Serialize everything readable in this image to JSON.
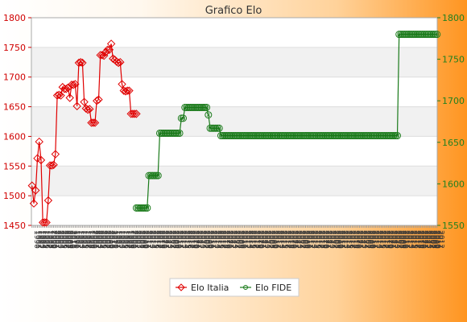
{
  "chart_data": {
    "type": "line",
    "title": "Grafico Elo",
    "xlabel": "",
    "ylabel": "",
    "left_axis": {
      "min": 1450,
      "max": 1800,
      "ticks": [
        1450,
        1500,
        1550,
        1600,
        1650,
        1700,
        1750,
        1800
      ],
      "color": "#d00000"
    },
    "right_axis": {
      "min": 1550,
      "max": 1800,
      "ticks": [
        1550,
        1600,
        1650,
        1700,
        1750,
        1800
      ],
      "color": "#208020"
    },
    "grid": true,
    "legend_position": "bottom-center",
    "series": [
      {
        "name": "Elo Italia",
        "axis": "left",
        "color": "#e00000",
        "marker": "diamond",
        "values": [
          1517,
          1487,
          1509,
          1563,
          1591,
          1560,
          1455,
          1455,
          1455,
          1492,
          1551,
          1551,
          1552,
          1570,
          1669,
          1670,
          1669,
          1683,
          1680,
          1680,
          1682,
          1665,
          1687,
          1687,
          1688,
          1651,
          1724,
          1725,
          1724,
          1658,
          1647,
          1645,
          1646,
          1623,
          1623,
          1623,
          1660,
          1662,
          1737,
          1737,
          1736,
          1742,
          1746,
          1746,
          1756,
          1731,
          1729,
          1726,
          1724,
          1725,
          1688,
          1677,
          1676,
          1677,
          1677,
          1638,
          1638,
          1638,
          1638
        ]
      },
      {
        "name": "Elo FIDE",
        "axis": "right",
        "color": "#1a7a1a",
        "marker": "circle",
        "offset": 58,
        "values": [
          1571,
          1571,
          1571,
          1571,
          1571,
          1571,
          1571,
          1610,
          1610,
          1610,
          1610,
          1610,
          1610,
          1661,
          1661,
          1661,
          1661,
          1661,
          1661,
          1661,
          1661,
          1661,
          1661,
          1661,
          1661,
          1679,
          1679,
          1692,
          1692,
          1692,
          1692,
          1692,
          1692,
          1692,
          1692,
          1692,
          1692,
          1692,
          1692,
          1692,
          1683,
          1667,
          1667,
          1667,
          1667,
          1667,
          1667,
          1658,
          1658,
          1658,
          1658,
          1658,
          1658,
          1658,
          1658,
          1658,
          1658,
          1658,
          1658,
          1658,
          1658,
          1658,
          1658,
          1658,
          1658,
          1658,
          1658,
          1658,
          1658,
          1658,
          1658,
          1658,
          1658,
          1658,
          1658,
          1658,
          1658,
          1658,
          1658,
          1658,
          1658,
          1658,
          1658,
          1658,
          1658,
          1658,
          1658,
          1658,
          1658,
          1658,
          1658,
          1658,
          1658,
          1658,
          1658,
          1658,
          1658,
          1658,
          1658,
          1658,
          1658,
          1658,
          1658,
          1658,
          1658,
          1658,
          1658,
          1658,
          1658,
          1658,
          1658,
          1658,
          1658,
          1658,
          1658,
          1658,
          1658,
          1658,
          1658,
          1658,
          1658,
          1658,
          1658,
          1658,
          1658,
          1658,
          1658,
          1658,
          1658,
          1658,
          1658,
          1658,
          1658,
          1658,
          1658,
          1658,
          1658,
          1658,
          1658,
          1658,
          1658,
          1658,
          1658,
          1658,
          1658,
          1658,
          1780,
          1780,
          1780,
          1780,
          1780,
          1780,
          1780,
          1780,
          1780,
          1780,
          1780,
          1780,
          1780,
          1780,
          1780,
          1780,
          1780,
          1780,
          1780,
          1780,
          1780,
          1780
        ]
      }
    ],
    "x_tick_labels_group_a": [
      "1990",
      "1991",
      "1992",
      "1993",
      "1994",
      "1995",
      "1996",
      "1997",
      "1998",
      "1999",
      "2000",
      "2001",
      "2002",
      "2003",
      "2004",
      "2005",
      "2006",
      "2007",
      "2008",
      "2009",
      "2010",
      "2011"
    ],
    "x_tick_labels_group_b": [
      "2007",
      "2008",
      "2009",
      "2010",
      "2011",
      "2012",
      "2013",
      "2014",
      "2015",
      "2016",
      "2017",
      "2018",
      "2019",
      "2020",
      "2021",
      "2022",
      "2023",
      "2024"
    ]
  },
  "legend": {
    "items": [
      {
        "label": "Elo Italia",
        "color": "#e00000"
      },
      {
        "label": "Elo FIDE",
        "color": "#1a7a1a"
      }
    ]
  }
}
